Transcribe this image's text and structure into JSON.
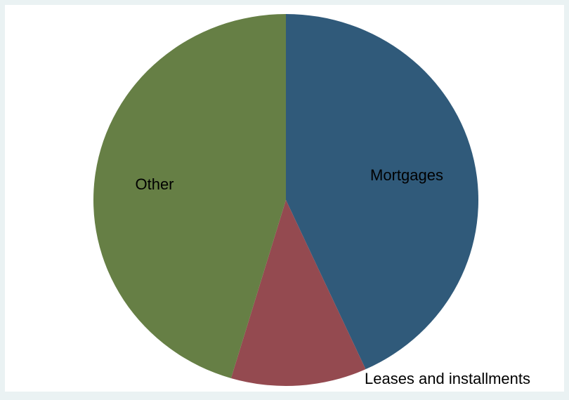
{
  "chart_data": {
    "type": "pie",
    "categories": [
      "Mortgages",
      "Leases and installments",
      "Other"
    ],
    "values": [
      43.2,
      11.4,
      45.4
    ],
    "colors": [
      "#305a7a",
      "#944a50",
      "#667f45"
    ]
  }
}
